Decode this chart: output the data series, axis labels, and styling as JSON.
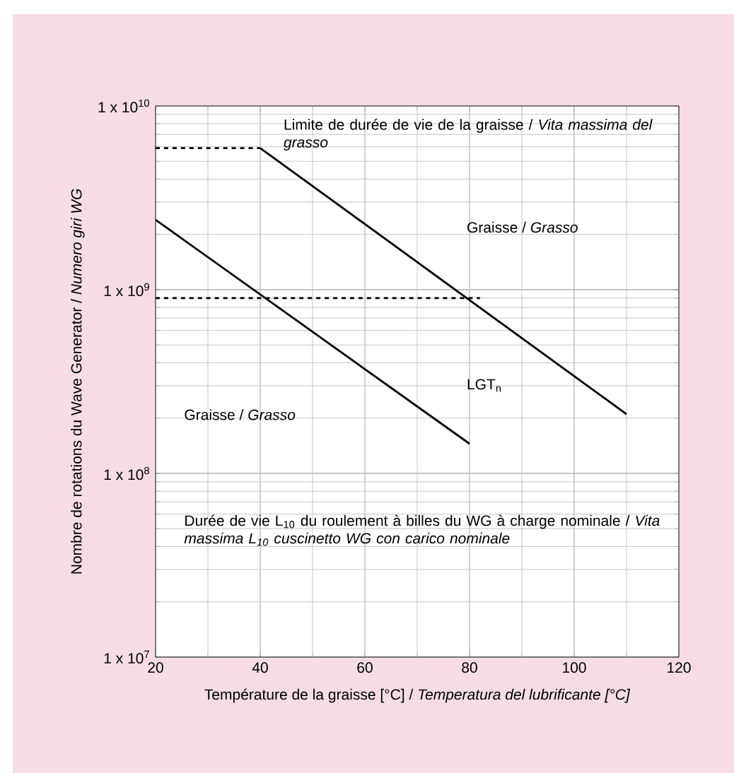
{
  "chart_data": {
    "type": "line",
    "xlabel": "Température de la graisse [°C] / *Temperatura del lubrificante [°C]*",
    "ylabel": "Nombre de rotations du Wave Generator / *Numero giri WG*",
    "xlim": [
      20,
      120
    ],
    "xticks": [
      20,
      40,
      60,
      80,
      100,
      120
    ],
    "ylim": [
      10000000,
      10000000000
    ],
    "yticks": [
      {
        "value": 10000000,
        "label": "1 x 10$^{7}$"
      },
      {
        "value": 100000000,
        "label": "1 x 10$^{8}$"
      },
      {
        "value": 1000000000,
        "label": "1 x 10$^{9}$"
      },
      {
        "value": 10000000000,
        "label": "1 x 10$^{10}$"
      }
    ],
    "log": "y",
    "grid": true,
    "series": [
      {
        "x": [
          20,
          40
        ],
        "values": [
          5900000000,
          5900000000
        ],
        "color": "#000000",
        "line_style": "dashed"
      },
      {
        "x": [
          40,
          110
        ],
        "values": [
          5900000000,
          210000000
        ],
        "color": "#000000",
        "line_style": "solid"
      },
      {
        "x": [
          20,
          80
        ],
        "values": [
          2400000000,
          145000000
        ],
        "color": "#000000",
        "line_style": "solid"
      },
      {
        "x": [
          20,
          82
        ],
        "values": [
          900000000,
          900000000
        ],
        "color": "#000000",
        "line_style": "dashed"
      }
    ],
    "annotations": [
      "Limite de durée de vie de la graisse / *Vita massima del grasso*",
      "Graisse / *Grasso*",
      "LGT$_{n}$",
      "Graisse / *Grasso*",
      "Durée de vie L$_{10}$ du roulement à billes du WG à charge nominale / *Vita massima L$_{10}$ cuscinetto WG con carico nominale*"
    ]
  }
}
